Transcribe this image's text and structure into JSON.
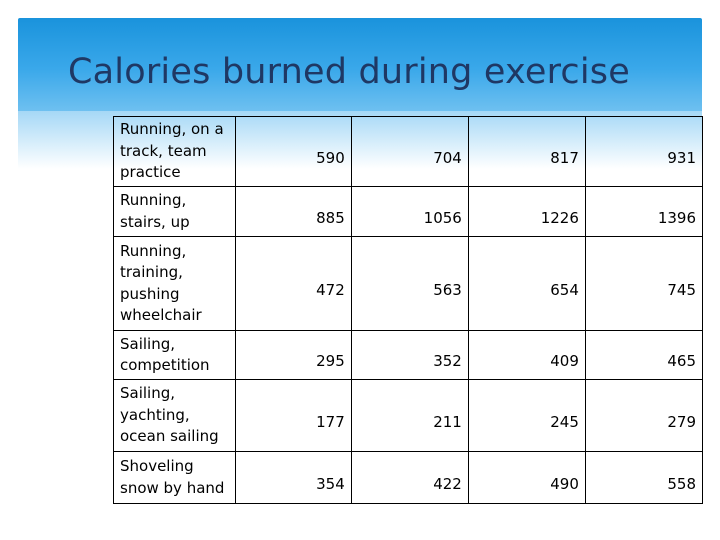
{
  "title": "Calories burned during exercise",
  "table": {
    "rows": [
      {
        "activity": "Running, on a track, team practice",
        "values": [
          "590",
          "704",
          "817",
          "931"
        ]
      },
      {
        "activity": "Running, stairs, up",
        "values": [
          "885",
          "1056",
          "1226",
          "1396"
        ]
      },
      {
        "activity": "Running, training, pushing wheelchair",
        "values": [
          "472",
          "563",
          "654",
          "745"
        ]
      },
      {
        "activity": "Sailing, competition",
        "values": [
          "295",
          "352",
          "409",
          "465"
        ]
      },
      {
        "activity": "Sailing, yachting, ocean sailing",
        "values": [
          "177",
          "211",
          "245",
          "279"
        ]
      },
      {
        "activity": "Shoveling snow by hand",
        "values": [
          "354",
          "422",
          "490",
          "558"
        ]
      }
    ]
  },
  "colors": {
    "header": "#1a93dc",
    "title": "#1f3864"
  }
}
